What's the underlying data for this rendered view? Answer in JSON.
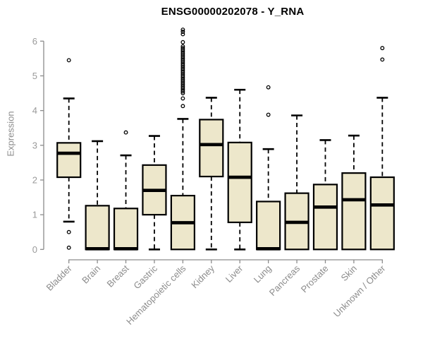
{
  "chart_data": {
    "type": "boxplot",
    "title": "ENSG00000202078 - Y_RNA",
    "ylabel": "Expression",
    "ylim": [
      0,
      6
    ],
    "yticks": [
      0,
      1,
      2,
      3,
      4,
      5,
      6
    ],
    "grid": false,
    "legend": false,
    "categories": [
      "Bladder",
      "Brain",
      "Breast",
      "Gastric",
      "Hematopoietic cells",
      "Kidney",
      "Liver",
      "Lung",
      "Pancreas",
      "Prostate",
      "Skin",
      "Unknown / Other"
    ],
    "boxes": [
      {
        "category": "Bladder",
        "whisker_low": 0.8,
        "q1": 2.08,
        "median": 2.77,
        "q3": 3.07,
        "whisker_high": 4.35,
        "outliers": [
          5.45,
          0.5,
          0.05
        ]
      },
      {
        "category": "Brain",
        "whisker_low": 0,
        "q1": 0,
        "median": 0.02,
        "q3": 1.26,
        "whisker_high": 3.12,
        "outliers": []
      },
      {
        "category": "Breast",
        "whisker_low": 0,
        "q1": 0,
        "median": 0.02,
        "q3": 1.18,
        "whisker_high": 2.71,
        "outliers": [
          3.37
        ]
      },
      {
        "category": "Gastric",
        "whisker_low": 0,
        "q1": 1.0,
        "median": 1.7,
        "q3": 2.43,
        "whisker_high": 3.27,
        "outliers": []
      },
      {
        "category": "Hematopoietic cells",
        "whisker_low": 0,
        "q1": 0,
        "median": 0.77,
        "q3": 1.55,
        "whisker_high": 3.76,
        "outliers": [
          4.13,
          4.35,
          4.5,
          4.55,
          4.6,
          4.65,
          4.7,
          4.75,
          4.8,
          4.85,
          4.9,
          4.95,
          5.0,
          5.05,
          5.1,
          5.15,
          5.2,
          5.25,
          5.3,
          5.35,
          5.4,
          5.45,
          5.5,
          5.55,
          5.6,
          5.65,
          5.7,
          5.75,
          5.8,
          5.85,
          5.97,
          6.2,
          6.27,
          6.33
        ]
      },
      {
        "category": "Kidney",
        "whisker_low": 0,
        "q1": 2.1,
        "median": 3.02,
        "q3": 3.74,
        "whisker_high": 4.37,
        "outliers": []
      },
      {
        "category": "Liver",
        "whisker_low": 0,
        "q1": 0.78,
        "median": 2.08,
        "q3": 3.08,
        "whisker_high": 4.6,
        "outliers": []
      },
      {
        "category": "Lung",
        "whisker_low": 0,
        "q1": 0,
        "median": 0.02,
        "q3": 1.38,
        "whisker_high": 2.89,
        "outliers": [
          3.88,
          4.67
        ]
      },
      {
        "category": "Pancreas",
        "whisker_low": 0,
        "q1": 0,
        "median": 0.78,
        "q3": 1.62,
        "whisker_high": 3.86,
        "outliers": []
      },
      {
        "category": "Prostate",
        "whisker_low": 0,
        "q1": 0,
        "median": 1.22,
        "q3": 1.87,
        "whisker_high": 3.15,
        "outliers": []
      },
      {
        "category": "Skin",
        "whisker_low": 0,
        "q1": 0,
        "median": 1.43,
        "q3": 2.2,
        "whisker_high": 3.28,
        "outliers": []
      },
      {
        "category": "Unknown / Other",
        "whisker_low": 0,
        "q1": 0,
        "median": 1.28,
        "q3": 2.08,
        "whisker_high": 4.37,
        "outliers": [
          5.47,
          5.8
        ]
      }
    ],
    "colors": {
      "box_fill": "#EDE7CB",
      "box_border": "#000000",
      "median_line": "#000000",
      "whisker": "#000000",
      "outlier_stroke": "#000000",
      "axis_line": "#8c8c8c",
      "tick_label": "#9a9a9a",
      "category_label": "#8c8c8c",
      "title_color": "#000000",
      "background": "#ffffff"
    }
  }
}
